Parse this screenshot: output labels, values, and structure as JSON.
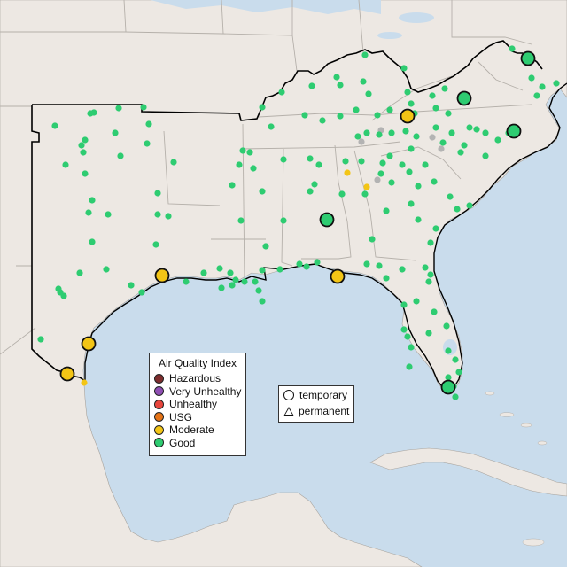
{
  "legend": {
    "title": "Air Quality Index",
    "categories": [
      {
        "label": "Hazardous",
        "color": "#7e2d2d"
      },
      {
        "label": "Very Unhealthy",
        "color": "#8f4fb3"
      },
      {
        "label": "Unhealthy",
        "color": "#e8453c"
      },
      {
        "label": "USG",
        "color": "#e57417"
      },
      {
        "label": "Moderate",
        "color": "#f3c516"
      },
      {
        "label": "Good",
        "color": "#2ecc71"
      }
    ]
  },
  "shape_legend": {
    "temporary": "temporary",
    "permanent": "permanent"
  },
  "colors": {
    "water": "#c9dcec",
    "land": "#ede8e3",
    "state_lines": "#b5b0aa",
    "region_outline": "#000000",
    "no_data": "#b3b3b3"
  }
}
